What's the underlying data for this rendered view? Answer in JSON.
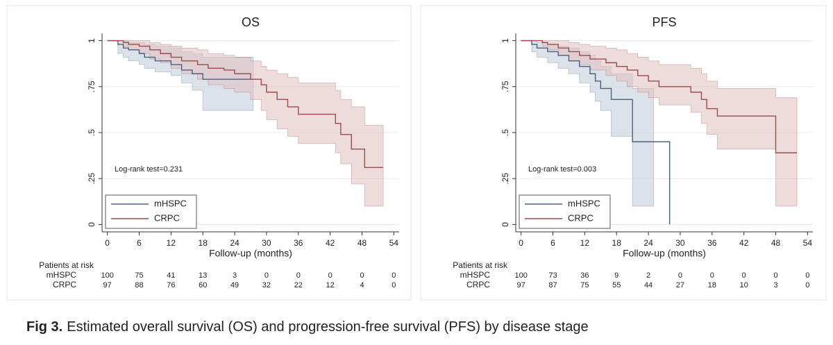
{
  "chart_data": [
    {
      "type": "step",
      "title": "OS",
      "x_label": "Follow-up (months)",
      "xlim": [
        -1,
        55
      ],
      "xticks": [
        0,
        6,
        12,
        18,
        24,
        30,
        36,
        42,
        48,
        54
      ],
      "ylim": [
        -0.04,
        1.04
      ],
      "yticks": [
        0,
        {
          "value": 0.25,
          "label": ".25"
        },
        {
          "value": 0.5,
          "label": ".5"
        },
        {
          "value": 0.75,
          "label": ".75"
        },
        1
      ],
      "grid": true,
      "legend": "lower left",
      "annotation": "Log-rank test=0.231",
      "series": [
        {
          "name": "mHSPC",
          "color": "#4a6080",
          "ci_color": "#c5cfdb",
          "x": [
            0,
            2,
            3,
            4,
            6,
            7,
            9,
            12,
            14,
            16,
            18,
            27.5
          ],
          "values": [
            1,
            0.98,
            0.96,
            0.95,
            0.93,
            0.91,
            0.89,
            0.87,
            0.84,
            0.82,
            0.79,
            0.79
          ],
          "ci_lower": [
            1,
            0.93,
            0.91,
            0.89,
            0.87,
            0.85,
            0.83,
            0.81,
            0.77,
            0.73,
            0.62,
            0.62
          ],
          "ci_upper": [
            1,
            1,
            1,
            0.99,
            0.99,
            0.98,
            0.97,
            0.96,
            0.94,
            0.93,
            0.91,
            0.91
          ]
        },
        {
          "name": "CRPC",
          "color": "#9c4a4a",
          "ci_color": "#e3c3c3",
          "x": [
            0,
            3,
            4,
            6,
            8,
            10,
            12,
            14,
            17,
            19,
            22,
            24,
            27,
            29,
            30,
            32,
            34,
            36,
            43,
            44,
            46,
            48.5,
            52
          ],
          "values": [
            1,
            0.99,
            0.98,
            0.97,
            0.95,
            0.93,
            0.91,
            0.89,
            0.87,
            0.85,
            0.84,
            0.82,
            0.79,
            0.76,
            0.72,
            0.68,
            0.64,
            0.6,
            0.55,
            0.49,
            0.41,
            0.31,
            0.31
          ],
          "ci_lower": [
            1,
            0.97,
            0.95,
            0.93,
            0.9,
            0.88,
            0.85,
            0.82,
            0.79,
            0.76,
            0.74,
            0.72,
            0.68,
            0.62,
            0.57,
            0.52,
            0.48,
            0.44,
            0.39,
            0.33,
            0.22,
            0.1,
            0.1
          ],
          "ci_upper": [
            1,
            1,
            1,
            1,
            0.99,
            0.98,
            0.97,
            0.96,
            0.95,
            0.93,
            0.92,
            0.91,
            0.89,
            0.86,
            0.84,
            0.82,
            0.8,
            0.77,
            0.73,
            0.68,
            0.64,
            0.54,
            0.54
          ]
        }
      ],
      "risk_table": {
        "title": "Patients at risk",
        "rows": [
          {
            "name": "mHSPC",
            "values": [
              100,
              75,
              41,
              13,
              3,
              0,
              0,
              0,
              0,
              0
            ]
          },
          {
            "name": "CRPC",
            "values": [
              97,
              88,
              76,
              60,
              49,
              32,
              22,
              12,
              4,
              0
            ]
          }
        ]
      }
    },
    {
      "type": "step",
      "title": "PFS",
      "x_label": "Follow-up (months)",
      "xlim": [
        -1,
        55
      ],
      "xticks": [
        0,
        6,
        12,
        18,
        24,
        30,
        36,
        42,
        48,
        54
      ],
      "ylim": [
        -0.04,
        1.04
      ],
      "yticks": [
        0,
        {
          "value": 0.25,
          "label": ".25"
        },
        {
          "value": 0.5,
          "label": ".5"
        },
        {
          "value": 0.75,
          "label": ".75"
        },
        1
      ],
      "grid": true,
      "legend": "lower left",
      "annotation": "Log-rank test=0.003",
      "series": [
        {
          "name": "mHSPC",
          "color": "#4a6080",
          "ci_color": "#c5cfdb",
          "x": [
            0,
            2,
            3,
            5,
            7,
            9,
            11,
            13,
            14,
            15,
            17,
            21,
            25,
            28
          ],
          "values": [
            1,
            0.98,
            0.96,
            0.94,
            0.92,
            0.89,
            0.86,
            0.82,
            0.78,
            0.74,
            0.68,
            0.45,
            0.45,
            0
          ],
          "ci_lower": [
            1,
            0.94,
            0.91,
            0.88,
            0.85,
            0.82,
            0.77,
            0.72,
            0.67,
            0.62,
            0.48,
            0.1,
            0.1,
            null
          ],
          "ci_upper": [
            1,
            1,
            0.99,
            0.98,
            0.97,
            0.96,
            0.94,
            0.92,
            0.89,
            0.86,
            0.82,
            0.74,
            0.74,
            null
          ]
        },
        {
          "name": "CRPC",
          "color": "#9c4a4a",
          "ci_color": "#e3c3c3",
          "x": [
            0,
            4,
            5,
            7,
            9,
            11,
            13,
            16,
            18,
            20,
            22,
            24,
            26,
            32,
            34,
            35,
            37,
            48,
            52
          ],
          "values": [
            1,
            0.99,
            0.98,
            0.96,
            0.94,
            0.92,
            0.9,
            0.88,
            0.86,
            0.84,
            0.81,
            0.78,
            0.75,
            0.72,
            0.68,
            0.63,
            0.59,
            0.39,
            0.39
          ],
          "ci_lower": [
            1,
            0.97,
            0.95,
            0.92,
            0.89,
            0.87,
            0.84,
            0.81,
            0.78,
            0.75,
            0.72,
            0.69,
            0.65,
            0.61,
            0.55,
            0.49,
            0.41,
            0.1,
            0.1
          ],
          "ci_upper": [
            1,
            1,
            1,
            1,
            0.99,
            0.98,
            0.97,
            0.96,
            0.95,
            0.93,
            0.91,
            0.89,
            0.87,
            0.85,
            0.82,
            0.78,
            0.74,
            0.69,
            0.69
          ]
        }
      ],
      "risk_table": {
        "title": "Patients at risk",
        "rows": [
          {
            "name": "mHSPC",
            "values": [
              100,
              73,
              36,
              9,
              2,
              0,
              0,
              0,
              0,
              0
            ]
          },
          {
            "name": "CRPC",
            "values": [
              97,
              87,
              75,
              55,
              44,
              27,
              18,
              10,
              3,
              0
            ]
          }
        ]
      }
    }
  ],
  "caption": {
    "label": "Fig 3.",
    "text": "Estimated overall survival (OS) and progression-free survival (PFS) by disease stage"
  }
}
